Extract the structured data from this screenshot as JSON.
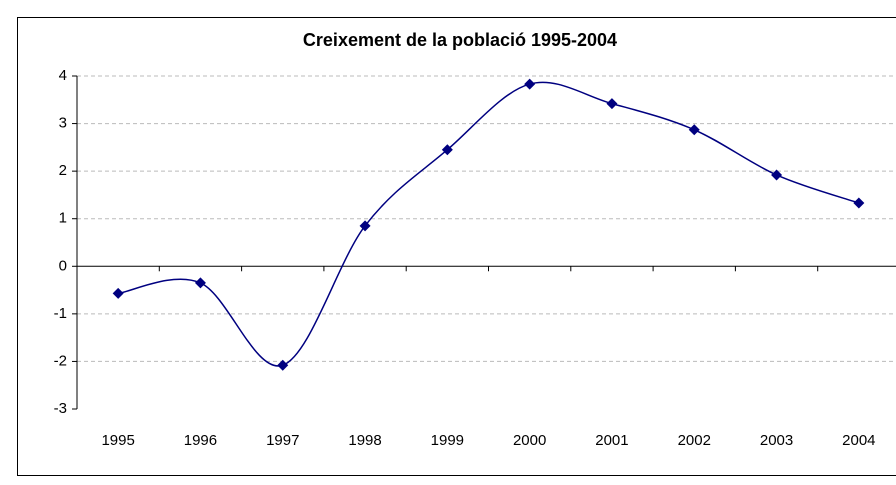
{
  "chart_data": {
    "type": "line",
    "title": "Creixement de la població 1995-2004",
    "categories": [
      "1995",
      "1996",
      "1997",
      "1998",
      "1999",
      "2000",
      "2001",
      "2002",
      "2003",
      "2004"
    ],
    "series": [
      {
        "color": "#000080",
        "values": [
          -0.57,
          -0.35,
          -2.08,
          0.85,
          2.45,
          3.83,
          3.42,
          2.87,
          1.92,
          1.33
        ]
      }
    ],
    "ylim": [
      -3,
      4
    ],
    "yticks": [
      -3,
      -2,
      -1,
      0,
      1,
      2,
      3,
      4
    ],
    "grid": true,
    "smooth": true
  }
}
